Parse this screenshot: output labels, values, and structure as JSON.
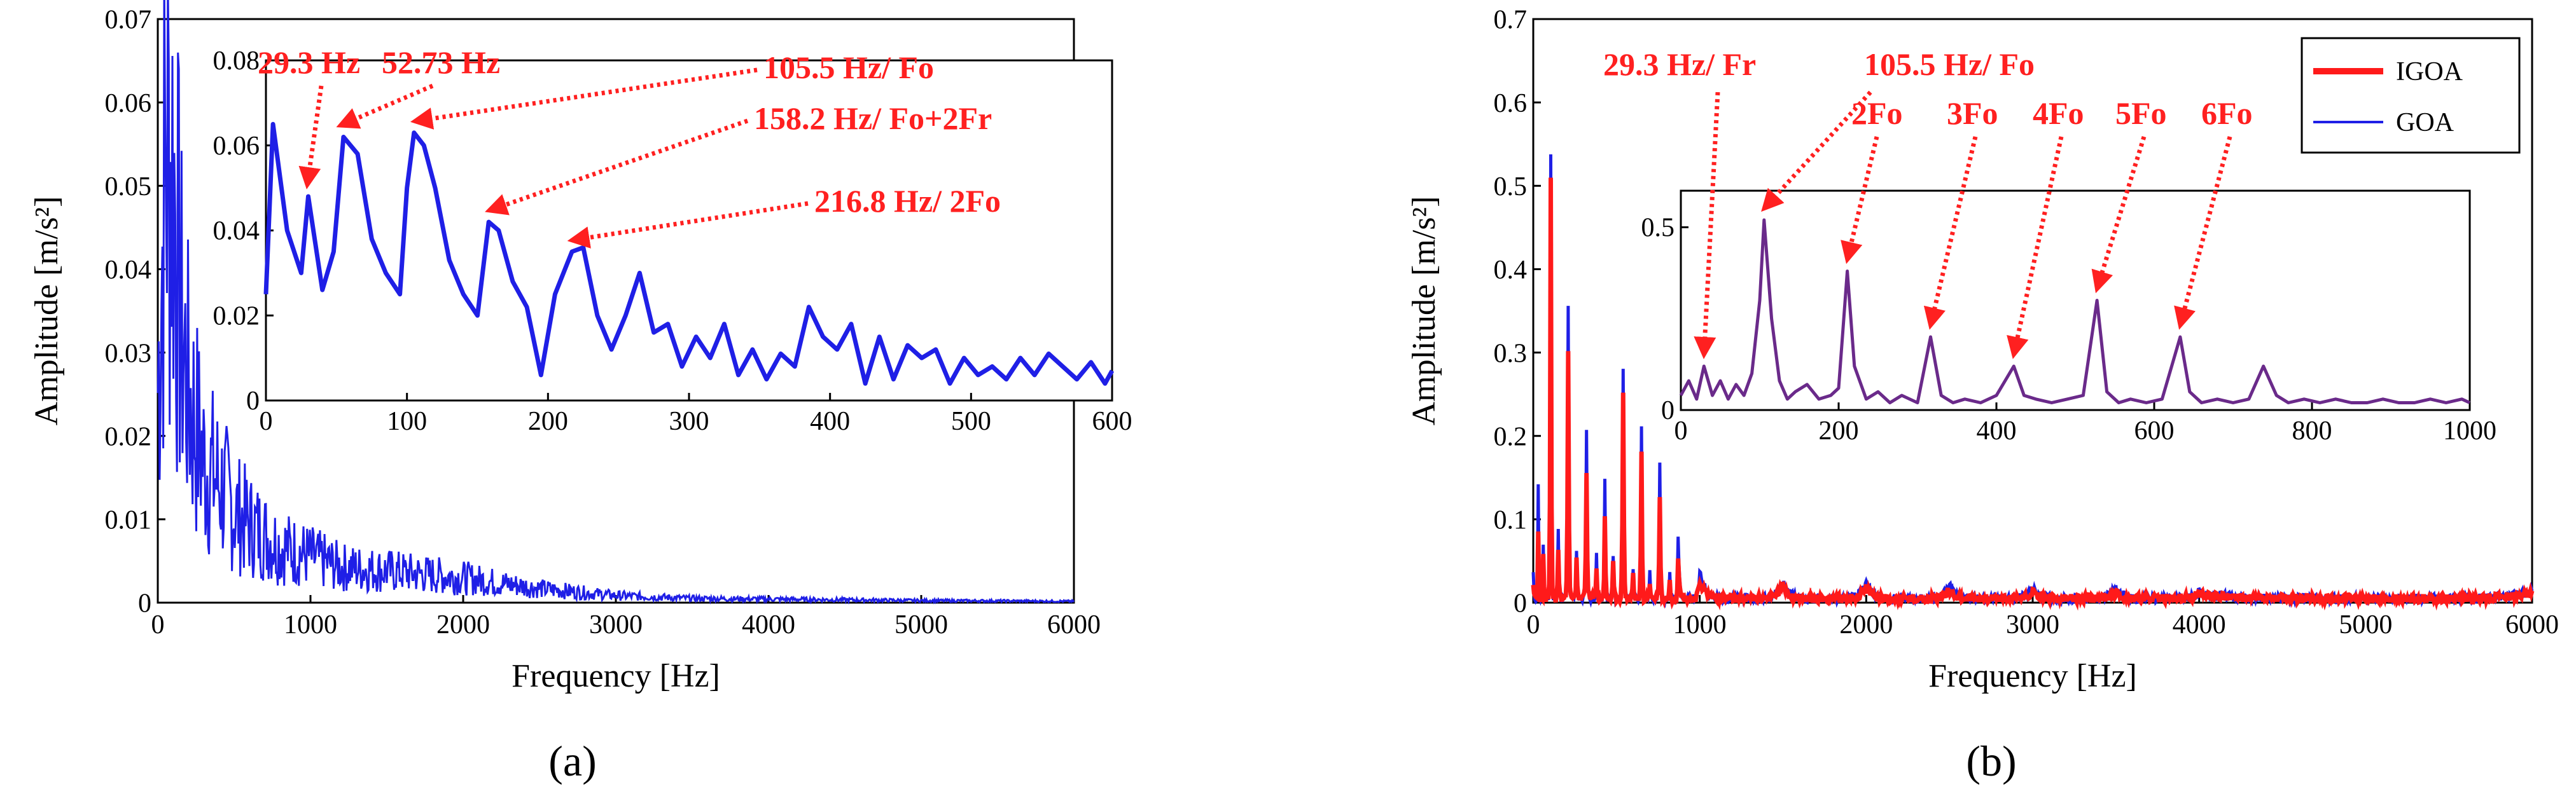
{
  "chart_data": [
    {
      "id": "a",
      "type": "line",
      "sublabel": "(a)",
      "xlabel": "Frequency [Hz]",
      "ylabel": "Amplitude [m/s²]",
      "xlim": [
        0,
        6000
      ],
      "ylim": [
        0,
        0.07
      ],
      "xticks": [
        0,
        1000,
        2000,
        3000,
        4000,
        5000,
        6000
      ],
      "yticks": [
        0,
        0.01,
        0.02,
        0.03,
        0.04,
        0.05,
        0.06,
        0.07
      ],
      "series": [
        {
          "name": "spectrum",
          "color": "#1f1fe6",
          "x": [
            0,
            50,
            100,
            150,
            200,
            250,
            300,
            400,
            500,
            600,
            800,
            1000,
            1200,
            1500,
            2000,
            2500,
            3000,
            3500,
            4000,
            5000,
            6000
          ],
          "y": [
            0.03,
            0.063,
            0.062,
            0.04,
            0.03,
            0.025,
            0.02,
            0.017,
            0.013,
            0.011,
            0.008,
            0.0065,
            0.005,
            0.0045,
            0.0035,
            0.002,
            0.001,
            0.0006,
            0.0005,
            0.0003,
            0.0002
          ]
        }
      ],
      "inset": {
        "xlim": [
          0,
          600
        ],
        "ylim": [
          0,
          0.08
        ],
        "xticks": [
          0,
          100,
          200,
          300,
          400,
          500,
          600
        ],
        "yticks": [
          0,
          0.02,
          0.04,
          0.06,
          0.08
        ],
        "series": [
          {
            "name": "zoom",
            "color": "#1f1fe6",
            "x": [
              0,
              5,
              15,
              25,
              30,
              40,
              48,
              55,
              65,
              75,
              85,
              95,
              100,
              105,
              112,
              120,
              130,
              140,
              150,
              158,
              165,
              175,
              185,
              195,
              205,
              217,
              225,
              235,
              245,
              255,
              265,
              275,
              285,
              295,
              305,
              315,
              325,
              335,
              345,
              355,
              365,
              375,
              385,
              395,
              405,
              415,
              425,
              435,
              445,
              455,
              465,
              475,
              485,
              495,
              505,
              515,
              525,
              535,
              545,
              555,
              565,
              575,
              585,
              595,
              600
            ],
            "y": [
              0.025,
              0.065,
              0.04,
              0.03,
              0.048,
              0.026,
              0.035,
              0.062,
              0.058,
              0.038,
              0.03,
              0.025,
              0.05,
              0.063,
              0.06,
              0.05,
              0.033,
              0.025,
              0.02,
              0.042,
              0.04,
              0.028,
              0.022,
              0.006,
              0.025,
              0.035,
              0.036,
              0.02,
              0.012,
              0.02,
              0.03,
              0.016,
              0.018,
              0.008,
              0.015,
              0.01,
              0.018,
              0.006,
              0.012,
              0.005,
              0.011,
              0.008,
              0.022,
              0.015,
              0.012,
              0.018,
              0.004,
              0.015,
              0.005,
              0.013,
              0.01,
              0.012,
              0.004,
              0.01,
              0.006,
              0.008,
              0.005,
              0.01,
              0.006,
              0.011,
              0.008,
              0.005,
              0.009,
              0.004,
              0.007
            ]
          }
        ]
      },
      "annotations": [
        {
          "text": "29.3 Hz",
          "x": 29.3,
          "y": 0.048
        },
        {
          "text": "52.73 Hz",
          "x": 52.73,
          "y": 0.062
        },
        {
          "text": "105.5 Hz/ Fo",
          "x": 105.5,
          "y": 0.063
        },
        {
          "text": "158.2 Hz/ Fo+2Fr",
          "x": 158.2,
          "y": 0.042
        },
        {
          "text": "216.8 Hz/ 2Fo",
          "x": 216.8,
          "y": 0.035
        }
      ]
    },
    {
      "id": "b",
      "type": "line",
      "sublabel": "(b)",
      "xlabel": "Frequency [Hz]",
      "ylabel": "Amplitude [m/s²]",
      "xlim": [
        0,
        6000
      ],
      "ylim": [
        0,
        0.7
      ],
      "xticks": [
        0,
        1000,
        2000,
        3000,
        4000,
        5000,
        6000
      ],
      "yticks": [
        0,
        0.1,
        0.2,
        0.3,
        0.4,
        0.5,
        0.6,
        0.7
      ],
      "legend": {
        "position": "top-right",
        "entries": [
          "IGOA",
          "GOA"
        ]
      },
      "series": [
        {
          "name": "IGOA",
          "color": "#ff1a1a",
          "x": [
            0,
            30,
            60,
            105,
            150,
            210,
            260,
            320,
            380,
            430,
            480,
            540,
            600,
            650,
            700,
            760,
            820,
            870,
            1000,
            1500,
            2000,
            2500,
            3000,
            3500,
            4000,
            6000
          ],
          "y": [
            0.02,
            0.08,
            0.05,
            0.5,
            0.06,
            0.3,
            0.05,
            0.15,
            0.04,
            0.1,
            0.04,
            0.25,
            0.03,
            0.18,
            0.02,
            0.12,
            0.02,
            0.05,
            0.02,
            0.015,
            0.012,
            0.01,
            0.008,
            0.007,
            0.006,
            0.006
          ]
        },
        {
          "name": "GOA",
          "color": "#1f1fe6",
          "x": [
            0,
            30,
            60,
            105,
            150,
            210,
            260,
            320,
            380,
            430,
            480,
            540,
            600,
            650,
            700,
            760,
            820,
            870,
            1000,
            1500,
            2000,
            2500,
            3000,
            3500,
            4000,
            6000
          ],
          "y": [
            0.03,
            0.14,
            0.06,
            0.53,
            0.08,
            0.35,
            0.06,
            0.2,
            0.05,
            0.14,
            0.05,
            0.28,
            0.04,
            0.21,
            0.03,
            0.16,
            0.03,
            0.07,
            0.03,
            0.02,
            0.018,
            0.015,
            0.012,
            0.012,
            0.008,
            0.008
          ]
        }
      ],
      "inset": {
        "xlim": [
          0,
          1000
        ],
        "ylim": [
          0,
          0.6
        ],
        "xticks": [
          0,
          200,
          400,
          600,
          800,
          1000
        ],
        "yticks": [
          0,
          0.5
        ],
        "series": [
          {
            "name": "zoom",
            "color": "#6a2a8a",
            "x": [
              0,
              10,
              20,
              29.3,
              40,
              50,
              60,
              70,
              80,
              90,
              100,
              105.5,
              115,
              125,
              135,
              145,
              160,
              175,
              190,
              200,
              211,
              220,
              235,
              250,
              265,
              280,
              300,
              316.5,
              330,
              345,
              360,
              380,
              400,
              422,
              435,
              450,
              470,
              490,
              510,
              527.5,
              540,
              555,
              570,
              590,
              610,
              633,
              645,
              660,
              680,
              700,
              720,
              738.5,
              755,
              770,
              790,
              810,
              830,
              850,
              870,
              890,
              910,
              930,
              950,
              970,
              990,
              1000
            ],
            "y": [
              0.04,
              0.08,
              0.03,
              0.12,
              0.04,
              0.08,
              0.03,
              0.07,
              0.04,
              0.1,
              0.3,
              0.52,
              0.25,
              0.08,
              0.03,
              0.05,
              0.07,
              0.03,
              0.04,
              0.06,
              0.38,
              0.12,
              0.03,
              0.05,
              0.02,
              0.04,
              0.02,
              0.2,
              0.04,
              0.02,
              0.03,
              0.02,
              0.04,
              0.12,
              0.04,
              0.03,
              0.02,
              0.03,
              0.04,
              0.3,
              0.05,
              0.02,
              0.03,
              0.02,
              0.03,
              0.2,
              0.05,
              0.02,
              0.03,
              0.02,
              0.03,
              0.12,
              0.04,
              0.02,
              0.03,
              0.02,
              0.03,
              0.02,
              0.02,
              0.03,
              0.02,
              0.02,
              0.03,
              0.02,
              0.03,
              0.02
            ]
          }
        ]
      },
      "annotations": [
        {
          "text": "29.3 Hz/ Fr",
          "x": 29.3,
          "y": 0.12
        },
        {
          "text": "105.5 Hz/ Fo",
          "x": 105.5,
          "y": 0.52
        },
        {
          "text": "2Fo",
          "x": 211,
          "y": 0.38
        },
        {
          "text": "3Fo",
          "x": 316.5,
          "y": 0.2
        },
        {
          "text": "4Fo",
          "x": 422,
          "y": 0.12
        },
        {
          "text": "5Fo",
          "x": 527.5,
          "y": 0.3
        },
        {
          "text": "6Fo",
          "x": 633,
          "y": 0.2
        }
      ]
    }
  ]
}
